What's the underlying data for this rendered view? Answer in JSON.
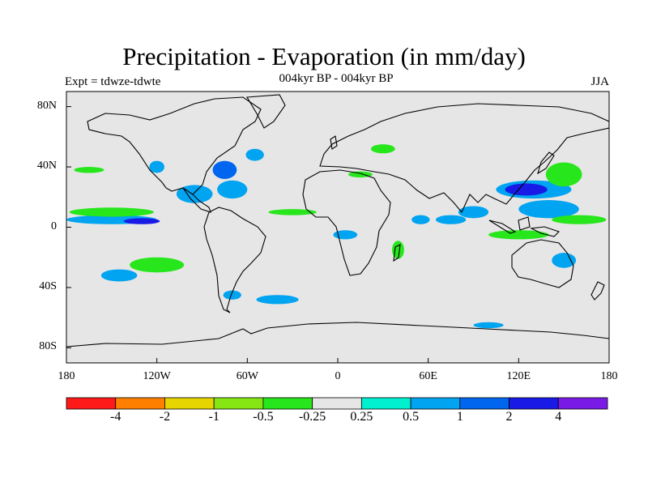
{
  "title": "Precipitation - Evaporation (in mm/day)",
  "subtitle": "004kyr BP - 004kyr BP",
  "left_label": "Expt = tdwze-tdwte",
  "right_label": "JJA",
  "map": {
    "projection": "cylindrical-equidistant",
    "lon_range": [
      -180,
      180
    ],
    "lat_range": [
      -90,
      90
    ],
    "background_color": "#e6e6e6",
    "coastline_color": "#000000",
    "y_ticks": [
      {
        "lat": 80,
        "label": "80N"
      },
      {
        "lat": 40,
        "label": "40N"
      },
      {
        "lat": 0,
        "label": "0"
      },
      {
        "lat": -40,
        "label": "40S"
      },
      {
        "lat": -80,
        "label": "80S"
      }
    ],
    "x_ticks": [
      {
        "lon": -180,
        "label": "180"
      },
      {
        "lon": -120,
        "label": "120W"
      },
      {
        "lon": -60,
        "label": "60W"
      },
      {
        "lon": 0,
        "label": "0"
      },
      {
        "lon": 60,
        "label": "60E"
      },
      {
        "lon": 120,
        "label": "120E"
      },
      {
        "lon": 180,
        "label": "180"
      }
    ]
  },
  "colorbar": {
    "colors": [
      "#ff1a1a",
      "#ff8000",
      "#e6d500",
      "#86e614",
      "#27e61b",
      "#e6e6e6",
      "#00f0d0",
      "#00a4f0",
      "#0066f0",
      "#1a1ae6",
      "#7a1ae6"
    ],
    "labels": [
      "-4",
      "-2",
      "-1",
      "-0.5",
      "-0.25",
      "0.25",
      "0.5",
      "1",
      "2",
      "4"
    ]
  },
  "patches": [
    {
      "lon": -150,
      "lat": 5,
      "rx": 30,
      "ry": 3,
      "level": "0.5"
    },
    {
      "lon": -130,
      "lat": 4,
      "rx": 12,
      "ry": 2,
      "level": "2"
    },
    {
      "lon": -150,
      "lat": 10,
      "rx": 28,
      "ry": 3,
      "level": "-0.5"
    },
    {
      "lon": -95,
      "lat": 22,
      "rx": 12,
      "ry": 6,
      "level": "0.5"
    },
    {
      "lon": -70,
      "lat": 25,
      "rx": 10,
      "ry": 6,
      "level": "0.5"
    },
    {
      "lon": -75,
      "lat": 38,
      "rx": 8,
      "ry": 6,
      "level": "1"
    },
    {
      "lon": -55,
      "lat": 48,
      "rx": 6,
      "ry": 4,
      "level": "0.5"
    },
    {
      "lon": -30,
      "lat": 10,
      "rx": 16,
      "ry": 2,
      "level": "-0.5"
    },
    {
      "lon": -120,
      "lat": -25,
      "rx": 18,
      "ry": 5,
      "level": "-0.5"
    },
    {
      "lon": -145,
      "lat": -32,
      "rx": 12,
      "ry": 4,
      "level": "0.5"
    },
    {
      "lon": -40,
      "lat": -48,
      "rx": 14,
      "ry": 3,
      "level": "0.5"
    },
    {
      "lon": -70,
      "lat": -45,
      "rx": 6,
      "ry": 3,
      "level": "0.5"
    },
    {
      "lon": 5,
      "lat": -5,
      "rx": 8,
      "ry": 3,
      "level": "0.5"
    },
    {
      "lon": 130,
      "lat": 25,
      "rx": 25,
      "ry": 6,
      "level": "0.5"
    },
    {
      "lon": 125,
      "lat": 25,
      "rx": 14,
      "ry": 4,
      "level": "2"
    },
    {
      "lon": 150,
      "lat": 35,
      "rx": 12,
      "ry": 8,
      "level": "-0.5"
    },
    {
      "lon": 140,
      "lat": 12,
      "rx": 20,
      "ry": 6,
      "level": "0.5"
    },
    {
      "lon": 160,
      "lat": 5,
      "rx": 18,
      "ry": 3,
      "level": "-0.5"
    },
    {
      "lon": 120,
      "lat": -5,
      "rx": 20,
      "ry": 3,
      "level": "-0.5"
    },
    {
      "lon": 90,
      "lat": 10,
      "rx": 10,
      "ry": 4,
      "level": "0.5"
    },
    {
      "lon": 75,
      "lat": 5,
      "rx": 10,
      "ry": 3,
      "level": "0.5"
    },
    {
      "lon": 55,
      "lat": 5,
      "rx": 6,
      "ry": 3,
      "level": "0.5"
    },
    {
      "lon": 40,
      "lat": -15,
      "rx": 4,
      "ry": 6,
      "level": "-0.5"
    },
    {
      "lon": 15,
      "lat": 35,
      "rx": 8,
      "ry": 2,
      "level": "-0.5"
    },
    {
      "lon": 30,
      "lat": 52,
      "rx": 8,
      "ry": 3,
      "level": "-0.5"
    },
    {
      "lon": 150,
      "lat": -22,
      "rx": 8,
      "ry": 5,
      "level": "0.5"
    },
    {
      "lon": -120,
      "lat": 40,
      "rx": 5,
      "ry": 4,
      "level": "0.5"
    },
    {
      "lon": -165,
      "lat": 38,
      "rx": 10,
      "ry": 2,
      "level": "-0.5"
    },
    {
      "lon": 100,
      "lat": -65,
      "rx": 10,
      "ry": 2,
      "level": "0.5"
    }
  ]
}
